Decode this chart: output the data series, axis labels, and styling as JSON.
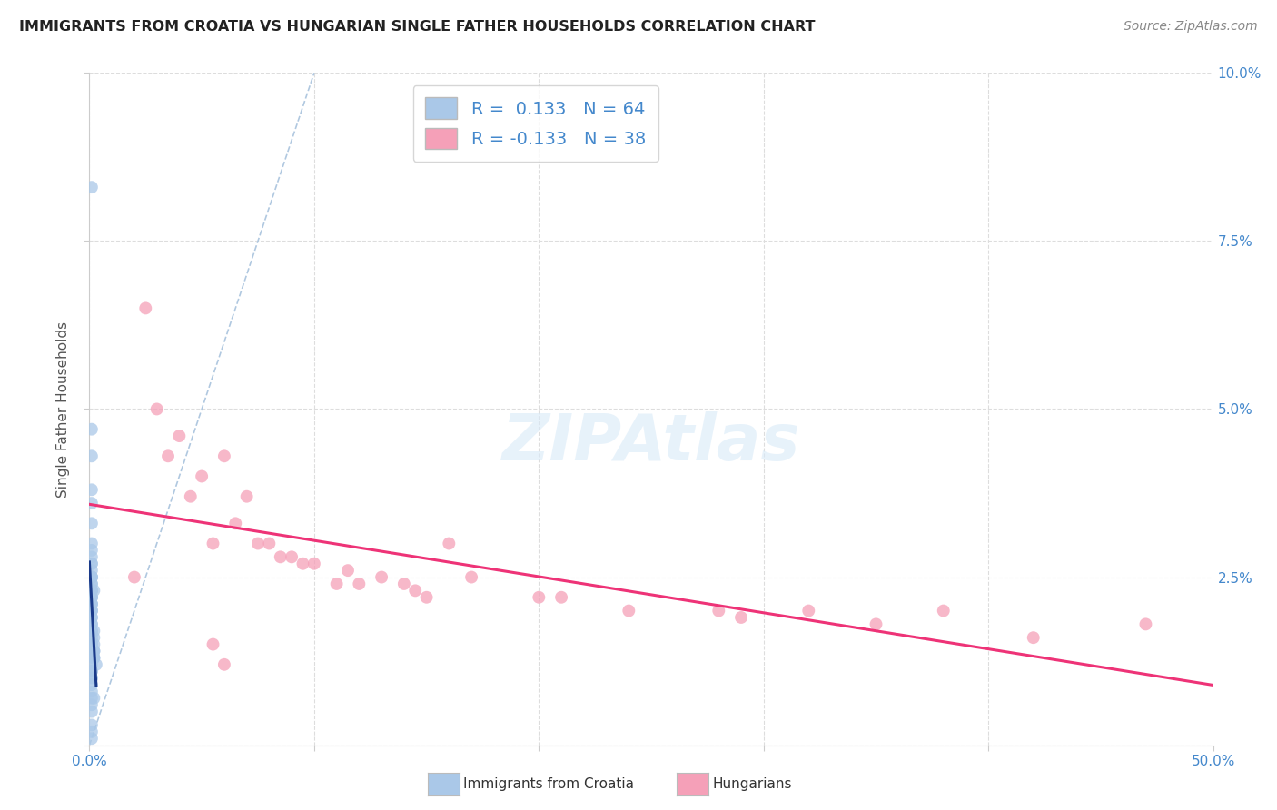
{
  "title": "IMMIGRANTS FROM CROATIA VS HUNGARIAN SINGLE FATHER HOUSEHOLDS CORRELATION CHART",
  "source": "Source: ZipAtlas.com",
  "ylabel": "Single Father Households",
  "xlim": [
    0.0,
    0.5
  ],
  "ylim": [
    0.0,
    0.1
  ],
  "xticks": [
    0.0,
    0.1,
    0.2,
    0.3,
    0.4,
    0.5
  ],
  "yticks": [
    0.0,
    0.025,
    0.05,
    0.075,
    0.1
  ],
  "ytick_labels_right": [
    "",
    "2.5%",
    "5.0%",
    "7.5%",
    "10.0%"
  ],
  "ytick_labels_left": [
    "",
    "",
    "",
    "",
    ""
  ],
  "xtick_labels": [
    "0.0%",
    "",
    "",
    "",
    "",
    "50.0%"
  ],
  "croatia_R": 0.133,
  "croatia_N": 64,
  "hungarian_R": -0.133,
  "hungarian_N": 38,
  "legend_label_croatia": "Immigrants from Croatia",
  "legend_label_hungarian": "Hungarians",
  "croatia_color": "#aac8e8",
  "croatian_line_color": "#1a3a8a",
  "hungarian_color": "#f5a0b8",
  "hungarian_line_color": "#ee3377",
  "diagonal_color": "#b0c8e0",
  "background_color": "#ffffff",
  "grid_color": "#dddddd",
  "axis_color": "#4488cc",
  "croatia_x": [
    0.001,
    0.001,
    0.001,
    0.001,
    0.001,
    0.001,
    0.001,
    0.001,
    0.001,
    0.001,
    0.001,
    0.001,
    0.001,
    0.001,
    0.001,
    0.001,
    0.001,
    0.001,
    0.002,
    0.001,
    0.001,
    0.001,
    0.001,
    0.001,
    0.001,
    0.001,
    0.001,
    0.001,
    0.001,
    0.001,
    0.001,
    0.001,
    0.001,
    0.001,
    0.001,
    0.001,
    0.001,
    0.002,
    0.002,
    0.001,
    0.001,
    0.002,
    0.001,
    0.002,
    0.002,
    0.002,
    0.002,
    0.002,
    0.002,
    0.003,
    0.001,
    0.001,
    0.001,
    0.001,
    0.001,
    0.001,
    0.001,
    0.001,
    0.002,
    0.001,
    0.001,
    0.001,
    0.001,
    0.001
  ],
  "croatia_y": [
    0.083,
    0.047,
    0.043,
    0.038,
    0.036,
    0.033,
    0.03,
    0.029,
    0.028,
    0.027,
    0.027,
    0.026,
    0.025,
    0.025,
    0.025,
    0.025,
    0.024,
    0.024,
    0.023,
    0.023,
    0.023,
    0.023,
    0.022,
    0.022,
    0.022,
    0.021,
    0.021,
    0.021,
    0.02,
    0.02,
    0.02,
    0.019,
    0.019,
    0.018,
    0.018,
    0.017,
    0.017,
    0.017,
    0.016,
    0.016,
    0.015,
    0.015,
    0.015,
    0.014,
    0.014,
    0.014,
    0.013,
    0.013,
    0.013,
    0.012,
    0.012,
    0.011,
    0.011,
    0.01,
    0.01,
    0.009,
    0.008,
    0.007,
    0.007,
    0.006,
    0.005,
    0.003,
    0.002,
    0.001
  ],
  "hungarian_x": [
    0.025,
    0.03,
    0.035,
    0.04,
    0.045,
    0.05,
    0.055,
    0.06,
    0.065,
    0.07,
    0.075,
    0.08,
    0.085,
    0.09,
    0.095,
    0.1,
    0.11,
    0.115,
    0.12,
    0.13,
    0.14,
    0.145,
    0.15,
    0.16,
    0.17,
    0.2,
    0.21,
    0.24,
    0.28,
    0.29,
    0.32,
    0.35,
    0.38,
    0.42,
    0.47,
    0.02,
    0.055,
    0.06
  ],
  "hungarian_y": [
    0.065,
    0.05,
    0.043,
    0.046,
    0.037,
    0.04,
    0.03,
    0.043,
    0.033,
    0.037,
    0.03,
    0.03,
    0.028,
    0.028,
    0.027,
    0.027,
    0.024,
    0.026,
    0.024,
    0.025,
    0.024,
    0.023,
    0.022,
    0.03,
    0.025,
    0.022,
    0.022,
    0.02,
    0.02,
    0.019,
    0.02,
    0.018,
    0.02,
    0.016,
    0.018,
    0.025,
    0.015,
    0.012
  ]
}
